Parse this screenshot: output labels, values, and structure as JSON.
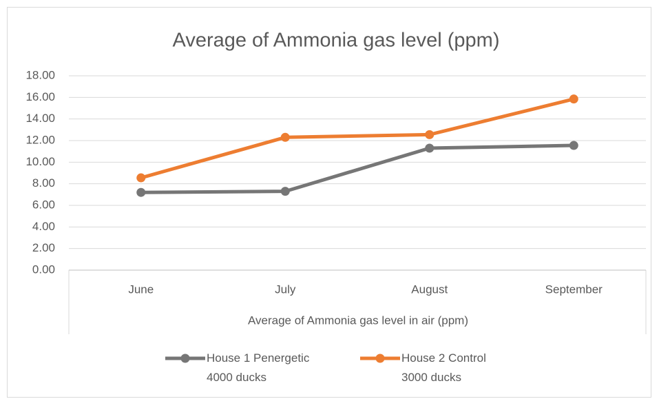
{
  "chart_data": {
    "type": "line",
    "title": "Average of Ammonia gas level (ppm)",
    "x_label": "Average of Ammonia gas level in air (ppm)",
    "categories": [
      "June",
      "July",
      "August",
      "September"
    ],
    "series": [
      {
        "name": "House 1 Penergetic\n4000 ducks",
        "color": "#767676",
        "values": [
          7.2,
          7.3,
          11.3,
          11.55
        ]
      },
      {
        "name": "House 2 Control\n3000 ducks",
        "color": "#ed7d31",
        "values": [
          8.55,
          12.3,
          12.55,
          15.85
        ]
      }
    ],
    "ylim": [
      0,
      18
    ],
    "yticks": [
      {
        "value": 0,
        "label": "0.00"
      },
      {
        "value": 2,
        "label": "2.00"
      },
      {
        "value": 4,
        "label": "4.00"
      },
      {
        "value": 6,
        "label": "6.00"
      },
      {
        "value": 8,
        "label": "8.00"
      },
      {
        "value": 10,
        "label": "10.00"
      },
      {
        "value": 12,
        "label": "12.00"
      },
      {
        "value": 14,
        "label": "14.00"
      },
      {
        "value": 16,
        "label": "16.00"
      },
      {
        "value": 18,
        "label": "18.00"
      }
    ],
    "grid": true,
    "legend": "bottom"
  }
}
